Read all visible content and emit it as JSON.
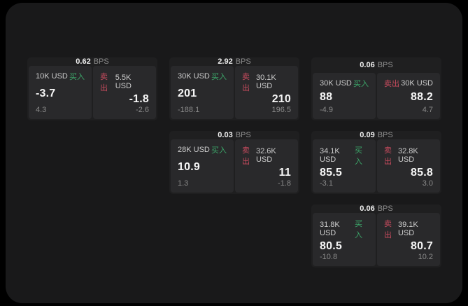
{
  "colors": {
    "window_bg": "#19191a",
    "card_bg": "#1f1f20",
    "panel_bg": "#29292b",
    "buy": "#3ca76a",
    "sell": "#c84b5e"
  },
  "labels": {
    "bps_unit": "BPS",
    "buy": "买入",
    "sell": "卖出"
  },
  "cards": [
    {
      "row": 1,
      "col": 1,
      "bps": "0.62",
      "buy": {
        "amount": "10K USD",
        "value": "-3.7",
        "sub": "4.3"
      },
      "sell": {
        "amount": "5.5K USD",
        "value": "-1.8",
        "sub": "-2.6"
      }
    },
    {
      "row": 1,
      "col": 2,
      "bps": "2.92",
      "buy": {
        "amount": "30K USD",
        "value": "201",
        "sub": "-188.1"
      },
      "sell": {
        "amount": "30.1K USD",
        "value": "210",
        "sub": "196.5"
      }
    },
    {
      "row": 1,
      "col": 3,
      "bps": "0.06",
      "buy": {
        "amount": "30K USD",
        "value": "88",
        "sub": "-4.9"
      },
      "sell": {
        "amount": "30K USD",
        "value": "88.2",
        "sub": "4.7"
      }
    },
    {
      "row": 2,
      "col": 2,
      "bps": "0.03",
      "buy": {
        "amount": "28K USD",
        "value": "10.9",
        "sub": "1.3"
      },
      "sell": {
        "amount": "32.6K USD",
        "value": "11",
        "sub": "-1.8"
      }
    },
    {
      "row": 2,
      "col": 3,
      "bps": "0.09",
      "buy": {
        "amount": "34.1K USD",
        "value": "85.5",
        "sub": "-3.1"
      },
      "sell": {
        "amount": "32.8K USD",
        "value": "85.8",
        "sub": "3.0"
      }
    },
    {
      "row": 3,
      "col": 3,
      "bps": "0.06",
      "buy": {
        "amount": "31.8K USD",
        "value": "80.5",
        "sub": "-10.8"
      },
      "sell": {
        "amount": "39.1K USD",
        "value": "80.7",
        "sub": "10.2"
      }
    }
  ]
}
